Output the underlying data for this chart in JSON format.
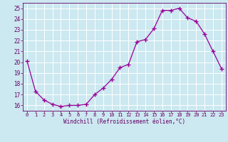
{
  "x": [
    0,
    1,
    2,
    3,
    4,
    5,
    6,
    7,
    8,
    9,
    10,
    11,
    12,
    13,
    14,
    15,
    16,
    17,
    18,
    19,
    20,
    21,
    22,
    23
  ],
  "y": [
    20.1,
    17.3,
    16.5,
    16.1,
    15.9,
    16.0,
    16.0,
    16.1,
    17.0,
    17.6,
    18.4,
    19.5,
    19.8,
    21.9,
    22.1,
    23.1,
    24.8,
    24.8,
    25.0,
    24.1,
    23.8,
    22.6,
    21.0,
    19.4
  ],
  "line_color": "#990099",
  "marker": "+",
  "bg_color": "#cce8f0",
  "grid_color": "#ffffff",
  "xlabel": "Windchill (Refroidissement éolien,°C)",
  "xlabel_color": "#660066",
  "tick_color": "#660066",
  "ylim": [
    15.5,
    25.5
  ],
  "xlim": [
    -0.5,
    23.5
  ],
  "yticks": [
    16,
    17,
    18,
    19,
    20,
    21,
    22,
    23,
    24,
    25
  ],
  "xticks": [
    0,
    1,
    2,
    3,
    4,
    5,
    6,
    7,
    8,
    9,
    10,
    11,
    12,
    13,
    14,
    15,
    16,
    17,
    18,
    19,
    20,
    21,
    22,
    23
  ],
  "figsize": [
    3.2,
    2.0
  ],
  "dpi": 100
}
